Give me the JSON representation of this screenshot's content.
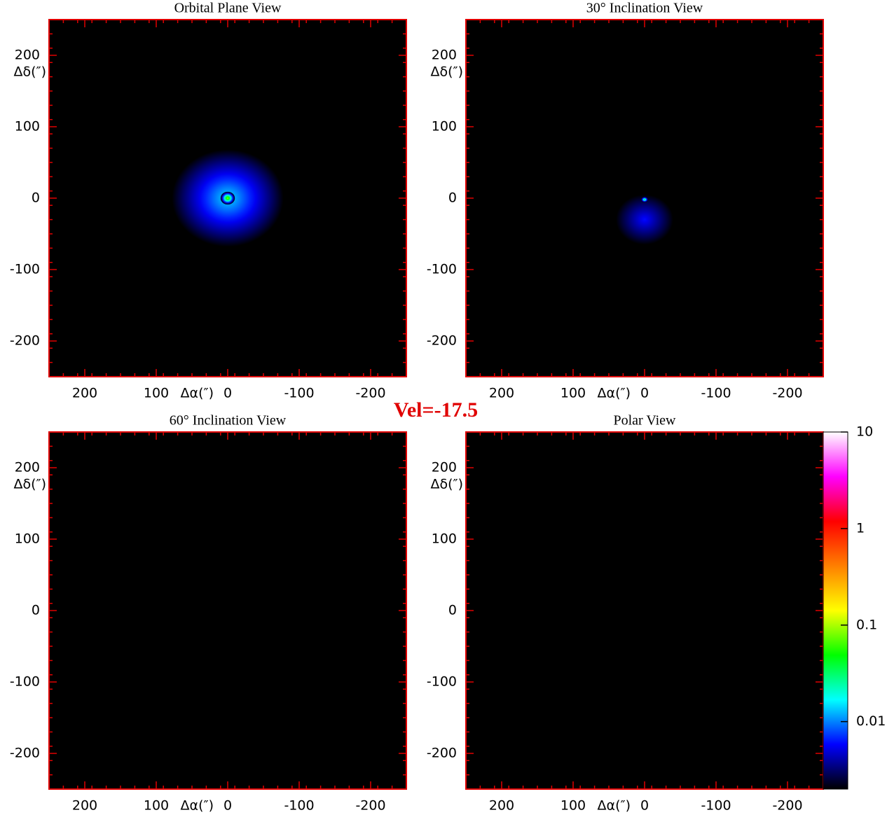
{
  "annotation": "Vel=-17.5",
  "colorbar": {
    "scale": "log",
    "lim": [
      0.002,
      10
    ],
    "ticks": [
      10,
      1,
      0.1,
      0.01
    ],
    "colormap": [
      "#000000",
      "#0000ff",
      "#00ffff",
      "#00ff00",
      "#ffff00",
      "#ff8000",
      "#ff0000",
      "#ff00ff",
      "#ffffff"
    ]
  },
  "chart_data": [
    {
      "type": "image",
      "title": "Orbital Plane View",
      "xlabel": "Δα(″)",
      "ylabel": "Δδ(″)",
      "xlim": [
        250,
        -250
      ],
      "ylim": [
        -250,
        250
      ],
      "xticks": [
        200,
        100,
        0,
        -100,
        -200
      ],
      "yticks": [
        -200,
        -100,
        0,
        100,
        200
      ],
      "frame_color": "#e00000",
      "blobs": [
        {
          "x": 0,
          "y": 0,
          "rx": 78,
          "ry": 68,
          "peak": 0.015
        },
        {
          "x": 0,
          "y": 0,
          "rx": 10,
          "ry": 9,
          "peak": 0.1
        }
      ]
    },
    {
      "type": "image",
      "title": "30° Inclination View",
      "xlabel": "Δα(″)",
      "ylabel": "Δδ(″)",
      "xlim": [
        250,
        -250
      ],
      "ylim": [
        -250,
        250
      ],
      "xticks": [
        200,
        100,
        0,
        -100,
        -200
      ],
      "yticks": [
        -200,
        -100,
        0,
        100,
        200
      ],
      "frame_color": "#e00000",
      "blobs": [
        {
          "x": 0,
          "y": -30,
          "rx": 40,
          "ry": 35,
          "peak": 0.006
        },
        {
          "x": 0,
          "y": -2,
          "rx": 5,
          "ry": 4,
          "peak": 0.04
        }
      ]
    },
    {
      "type": "image",
      "title": "60° Inclination View",
      "xlabel": "Δα(″)",
      "ylabel": "Δδ(″)",
      "xlim": [
        250,
        -250
      ],
      "ylim": [
        -250,
        250
      ],
      "xticks": [
        200,
        100,
        0,
        -100,
        -200
      ],
      "yticks": [
        -200,
        -100,
        0,
        100,
        200
      ],
      "frame_color": "#e00000",
      "blobs": []
    },
    {
      "type": "image",
      "title": "Polar View",
      "xlabel": "Δα(″)",
      "ylabel": "Δδ(″)",
      "xlim": [
        250,
        -250
      ],
      "ylim": [
        -250,
        250
      ],
      "xticks": [
        200,
        100,
        0,
        -100,
        -200
      ],
      "yticks": [
        -200,
        -100,
        0,
        100,
        200
      ],
      "frame_color": "#e00000",
      "blobs": []
    }
  ]
}
